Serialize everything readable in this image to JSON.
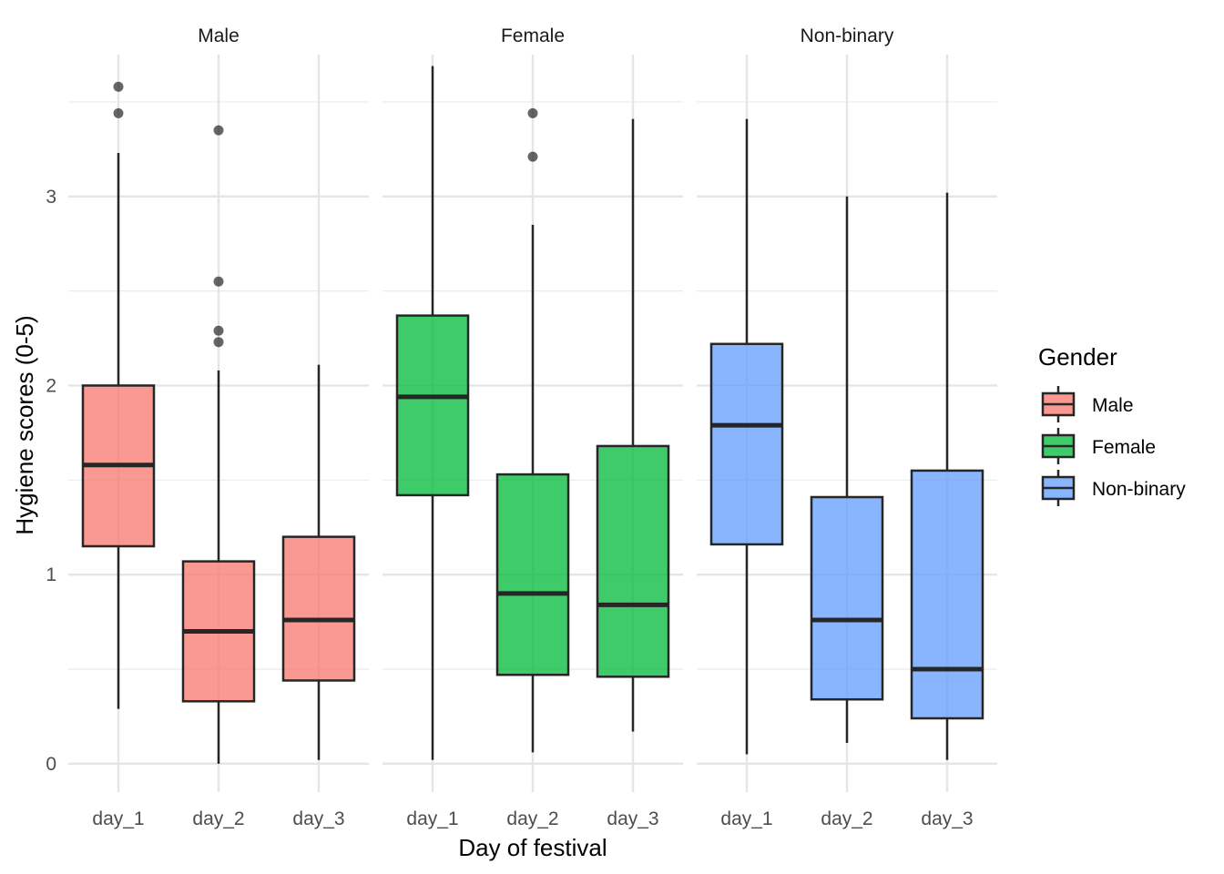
{
  "chart_data": {
    "type": "boxplot",
    "xlabel": "Day of festival",
    "ylabel": "Hygiene scores (0-5)",
    "ylim": [
      -0.15,
      3.75
    ],
    "yticks": [
      0,
      1,
      2,
      3
    ],
    "categories": [
      "day_1",
      "day_2",
      "day_3"
    ],
    "grid": true,
    "legend": {
      "title": "Gender",
      "position": "right"
    },
    "panels": [
      {
        "name": "Male",
        "color": "#F8766D",
        "boxes": [
          {
            "x": "day_1",
            "min": 0.29,
            "q1": 1.15,
            "median": 1.58,
            "q3": 2.0,
            "max": 3.23,
            "outliers": [
              3.44,
              3.58
            ]
          },
          {
            "x": "day_2",
            "min": 0.0,
            "q1": 0.33,
            "median": 0.7,
            "q3": 1.07,
            "max": 2.08,
            "outliers": [
              2.23,
              2.29,
              2.55,
              3.35
            ]
          },
          {
            "x": "day_3",
            "min": 0.02,
            "q1": 0.44,
            "median": 0.76,
            "q3": 1.2,
            "max": 2.11,
            "outliers": []
          }
        ]
      },
      {
        "name": "Female",
        "color": "#00BA38",
        "boxes": [
          {
            "x": "day_1",
            "min": 0.02,
            "q1": 1.42,
            "median": 1.94,
            "q3": 2.37,
            "max": 3.69,
            "outliers": []
          },
          {
            "x": "day_2",
            "min": 0.06,
            "q1": 0.47,
            "median": 0.9,
            "q3": 1.53,
            "max": 2.85,
            "outliers": [
              3.21,
              3.44
            ]
          },
          {
            "x": "day_3",
            "min": 0.17,
            "q1": 0.46,
            "median": 0.84,
            "q3": 1.68,
            "max": 3.41,
            "outliers": []
          }
        ]
      },
      {
        "name": "Non-binary",
        "color": "#619CFF",
        "boxes": [
          {
            "x": "day_1",
            "min": 0.05,
            "q1": 1.16,
            "median": 1.79,
            "q3": 2.22,
            "max": 3.41,
            "outliers": []
          },
          {
            "x": "day_2",
            "min": 0.11,
            "q1": 0.34,
            "median": 0.76,
            "q3": 1.41,
            "max": 3.0,
            "outliers": []
          },
          {
            "x": "day_3",
            "min": 0.02,
            "q1": 0.24,
            "median": 0.5,
            "q3": 1.55,
            "max": 3.02,
            "outliers": []
          }
        ]
      }
    ]
  }
}
